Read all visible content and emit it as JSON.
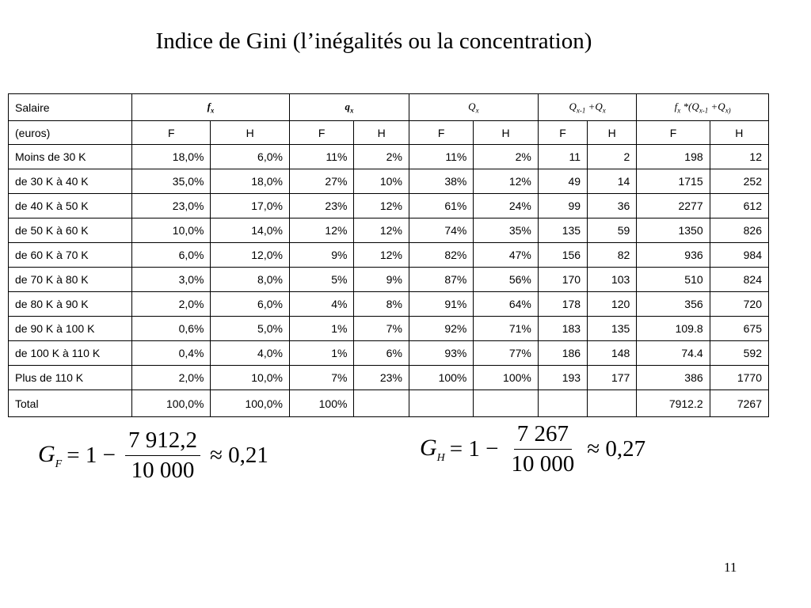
{
  "title": "Indice de Gini (l’inégalités ou la concentration)",
  "table": {
    "header": {
      "col1_line1": "Salaire",
      "col1_line2": "(euros)",
      "groups": {
        "fx": {
          "base": "f",
          "sub": "x"
        },
        "qx": {
          "base": "q",
          "sub": "x"
        },
        "Qx": {
          "base": "Q",
          "sub": "x"
        },
        "Qsum": {
          "a": "Q",
          "a_sub": "x-1",
          "plus": " +",
          "b": "Q",
          "b_sub": "x"
        },
        "fQ": {
          "a": "f",
          "a_sub": "x",
          "mid": " *(",
          "b": "Q",
          "b_sub": "x-1",
          "plus": " +",
          "c": "Q",
          "c_sub": "x)"
        }
      },
      "sub": [
        "F",
        "H",
        "F",
        "H",
        "F",
        "H",
        "F",
        "H",
        "F",
        "H"
      ]
    },
    "rows": [
      {
        "label": "Moins de 30 K",
        "v": [
          "18,0%",
          "6,0%",
          "11%",
          "2%",
          "11%",
          "2%",
          "11",
          "2",
          "198",
          "12"
        ]
      },
      {
        "label": "de 30 K à 40 K",
        "v": [
          "35,0%",
          "18,0%",
          "27%",
          "10%",
          "38%",
          "12%",
          "49",
          "14",
          "1715",
          "252"
        ]
      },
      {
        "label": "de 40 K à 50 K",
        "v": [
          "23,0%",
          "17,0%",
          "23%",
          "12%",
          "61%",
          "24%",
          "99",
          "36",
          "2277",
          "612"
        ]
      },
      {
        "label": "de 50 K à 60 K",
        "v": [
          "10,0%",
          "14,0%",
          "12%",
          "12%",
          "74%",
          "35%",
          "135",
          "59",
          "1350",
          "826"
        ]
      },
      {
        "label": "de 60 K à 70 K",
        "v": [
          "6,0%",
          "12,0%",
          "9%",
          "12%",
          "82%",
          "47%",
          "156",
          "82",
          "936",
          "984"
        ]
      },
      {
        "label": "de 70 K à 80 K",
        "v": [
          "3,0%",
          "8,0%",
          "5%",
          "9%",
          "87%",
          "56%",
          "170",
          "103",
          "510",
          "824"
        ]
      },
      {
        "label": "de 80 K à 90 K",
        "v": [
          "2,0%",
          "6,0%",
          "4%",
          "8%",
          "91%",
          "64%",
          "178",
          "120",
          "356",
          "720"
        ]
      },
      {
        "label": "de 90 K à 100 K",
        "v": [
          "0,6%",
          "5,0%",
          "1%",
          "7%",
          "92%",
          "71%",
          "183",
          "135",
          "109.8",
          "675"
        ]
      },
      {
        "label": "de 100 K à 110 K",
        "v": [
          "0,4%",
          "4,0%",
          "1%",
          "6%",
          "93%",
          "77%",
          "186",
          "148",
          "74.4",
          "592"
        ]
      },
      {
        "label": "Plus de 110 K",
        "v": [
          "2,0%",
          "10,0%",
          "7%",
          "23%",
          "100%",
          "100%",
          "193",
          "177",
          "386",
          "1770"
        ]
      }
    ],
    "total": {
      "label": "Total",
      "v": [
        "100,0%",
        "100,0%",
        "100%",
        "",
        "",
        "",
        "",
        "",
        "7912.2",
        "7267"
      ]
    }
  },
  "formulas": {
    "F": {
      "var": "G",
      "sub": "F",
      "eq": "= 1 −",
      "num": "7 912,2",
      "den": "10 000",
      "approx": "≈ 0,21"
    },
    "H": {
      "var": "G",
      "sub": "H",
      "eq": "= 1 −",
      "num": "7 267",
      "den": "10 000",
      "approx": "≈ 0,27"
    }
  },
  "page_number": "11"
}
